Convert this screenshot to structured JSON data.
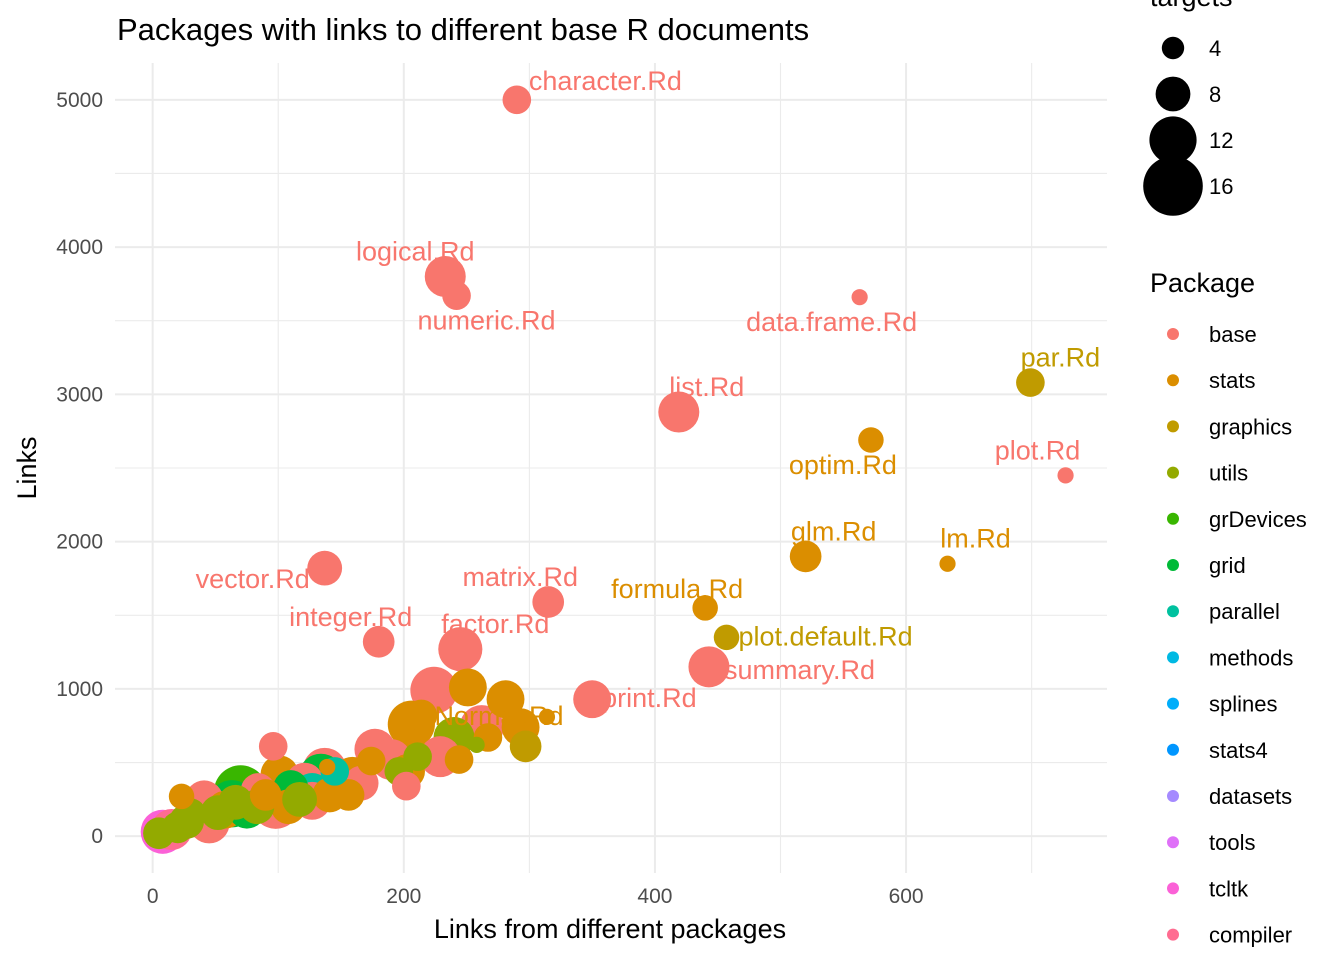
{
  "chart_data": {
    "type": "scatter",
    "title": "Packages with links to different base R documents",
    "xlabel": "Links from different packages",
    "ylabel": "Links",
    "xlim": [
      -30,
      760
    ],
    "ylim": [
      -250,
      5250
    ],
    "x_ticks": [
      0,
      200,
      400,
      600
    ],
    "y_ticks": [
      0,
      1000,
      2000,
      3000,
      4000,
      5000
    ],
    "grid": true,
    "size_legend": {
      "title": "targets",
      "items": [
        {
          "label": "4",
          "value": 4
        },
        {
          "label": "8",
          "value": 8
        },
        {
          "label": "12",
          "value": 12
        },
        {
          "label": "16",
          "value": 16
        }
      ]
    },
    "color_legend": {
      "title": "Package",
      "placement": "right",
      "items": [
        {
          "label": "base",
          "color": "#F8766D"
        },
        {
          "label": "stats",
          "color": "#DB8E00"
        },
        {
          "label": "graphics",
          "color": "#C09B00"
        },
        {
          "label": "utils",
          "color": "#93AA00"
        },
        {
          "label": "grDevices",
          "color": "#39B600"
        },
        {
          "label": "grid",
          "color": "#00BA38"
        },
        {
          "label": "parallel",
          "color": "#00C19F"
        },
        {
          "label": "methods",
          "color": "#00B9E3"
        },
        {
          "label": "splines",
          "color": "#00ADFA"
        },
        {
          "label": "stats4",
          "color": "#0096FF"
        },
        {
          "label": "datasets",
          "color": "#A58AFF"
        },
        {
          "label": "tools",
          "color": "#DF70F8"
        },
        {
          "label": "tcltk",
          "color": "#FB61D7"
        },
        {
          "label": "compiler",
          "color": "#FF6C91"
        }
      ]
    },
    "points": [
      {
        "x": 290,
        "y": 5000,
        "targets": 6,
        "package": "base",
        "label": "character.Rd"
      },
      {
        "x": 233,
        "y": 3800,
        "targets": 10,
        "package": "base",
        "label": "logical.Rd"
      },
      {
        "x": 242,
        "y": 3670,
        "targets": 6,
        "package": "base",
        "label": "numeric.Rd"
      },
      {
        "x": 563,
        "y": 3660,
        "targets": 2,
        "package": "base",
        "label": "data.frame.Rd"
      },
      {
        "x": 699,
        "y": 3080,
        "targets": 6,
        "package": "graphics",
        "label": "par.Rd"
      },
      {
        "x": 419,
        "y": 2880,
        "targets": 10,
        "package": "base",
        "label": "list.Rd"
      },
      {
        "x": 572,
        "y": 2690,
        "targets": 5,
        "package": "stats",
        "label": "optim.Rd"
      },
      {
        "x": 727,
        "y": 2450,
        "targets": 2,
        "package": "base",
        "label": "plot.Rd"
      },
      {
        "x": 520,
        "y": 1900,
        "targets": 7,
        "package": "stats",
        "label": "glm.Rd"
      },
      {
        "x": 633,
        "y": 1850,
        "targets": 2,
        "package": "stats",
        "label": "lm.Rd"
      },
      {
        "x": 137,
        "y": 1820,
        "targets": 8,
        "package": "base",
        "label": "vector.Rd"
      },
      {
        "x": 315,
        "y": 1590,
        "targets": 7,
        "package": "base",
        "label": "matrix.Rd"
      },
      {
        "x": 440,
        "y": 1550,
        "targets": 5,
        "package": "stats",
        "label": "formula.Rd"
      },
      {
        "x": 457,
        "y": 1350,
        "targets": 5,
        "package": "graphics",
        "label": "plot.default.Rd"
      },
      {
        "x": 180,
        "y": 1320,
        "targets": 7,
        "package": "base",
        "label": "integer.Rd"
      },
      {
        "x": 245,
        "y": 1270,
        "targets": 11,
        "package": "base",
        "label": "factor.Rd"
      },
      {
        "x": 443,
        "y": 1150,
        "targets": 10,
        "package": "base",
        "label": "summary.Rd"
      },
      {
        "x": 350,
        "y": 930,
        "targets": 9,
        "package": "base",
        "label": "print.Rd"
      },
      {
        "x": 314,
        "y": 810,
        "targets": 2,
        "package": "stats",
        "label": "Normal.Rd"
      },
      {
        "x": 224,
        "y": 990,
        "targets": 12,
        "package": "base"
      },
      {
        "x": 251,
        "y": 1010,
        "targets": 9,
        "package": "stats"
      },
      {
        "x": 281,
        "y": 930,
        "targets": 9,
        "package": "stats"
      },
      {
        "x": 206,
        "y": 760,
        "targets": 12,
        "package": "stats"
      },
      {
        "x": 214,
        "y": 820,
        "targets": 7,
        "package": "stats"
      },
      {
        "x": 262,
        "y": 740,
        "targets": 11,
        "package": "base"
      },
      {
        "x": 293,
        "y": 740,
        "targets": 9,
        "package": "stats"
      },
      {
        "x": 240,
        "y": 670,
        "targets": 10,
        "package": "utils"
      },
      {
        "x": 267,
        "y": 670,
        "targets": 6,
        "package": "stats"
      },
      {
        "x": 297,
        "y": 610,
        "targets": 7,
        "package": "graphics"
      },
      {
        "x": 258,
        "y": 620,
        "targets": 2,
        "package": "utils"
      },
      {
        "x": 177,
        "y": 590,
        "targets": 10,
        "package": "base"
      },
      {
        "x": 190,
        "y": 520,
        "targets": 10,
        "package": "base"
      },
      {
        "x": 229,
        "y": 540,
        "targets": 10,
        "package": "base"
      },
      {
        "x": 244,
        "y": 520,
        "targets": 6,
        "package": "stats"
      },
      {
        "x": 96,
        "y": 610,
        "targets": 6,
        "package": "base"
      },
      {
        "x": 211,
        "y": 540,
        "targets": 6,
        "package": "utils"
      },
      {
        "x": 174,
        "y": 510,
        "targets": 6,
        "package": "stats"
      },
      {
        "x": 137,
        "y": 450,
        "targets": 11,
        "package": "base"
      },
      {
        "x": 134,
        "y": 410,
        "targets": 11,
        "package": "grid"
      },
      {
        "x": 159,
        "y": 410,
        "targets": 9,
        "package": "stats"
      },
      {
        "x": 196,
        "y": 440,
        "targets": 6,
        "package": "utils"
      },
      {
        "x": 203,
        "y": 440,
        "targets": 8,
        "package": "stats"
      },
      {
        "x": 101,
        "y": 420,
        "targets": 9,
        "package": "stats"
      },
      {
        "x": 121,
        "y": 370,
        "targets": 9,
        "package": "base"
      },
      {
        "x": 166,
        "y": 360,
        "targets": 8,
        "package": "base"
      },
      {
        "x": 148,
        "y": 340,
        "targets": 10,
        "package": "stats"
      },
      {
        "x": 202,
        "y": 340,
        "targets": 6,
        "package": "base"
      },
      {
        "x": 110,
        "y": 330,
        "targets": 8,
        "package": "grid"
      },
      {
        "x": 84,
        "y": 310,
        "targets": 8,
        "package": "base"
      },
      {
        "x": 127,
        "y": 300,
        "targets": 9,
        "package": "parallel"
      },
      {
        "x": 70,
        "y": 300,
        "targets": 14,
        "package": "grDevices"
      },
      {
        "x": 141,
        "y": 280,
        "targets": 8,
        "package": "stats"
      },
      {
        "x": 113,
        "y": 290,
        "targets": 12,
        "package": "stats"
      },
      {
        "x": 156,
        "y": 280,
        "targets": 7,
        "package": "stats"
      },
      {
        "x": 23,
        "y": 270,
        "targets": 5,
        "package": "stats"
      },
      {
        "x": 41,
        "y": 250,
        "targets": 9,
        "package": "base"
      },
      {
        "x": 63,
        "y": 220,
        "targets": 12,
        "package": "grid"
      },
      {
        "x": 98,
        "y": 210,
        "targets": 12,
        "package": "base"
      },
      {
        "x": 108,
        "y": 200,
        "targets": 8,
        "package": "stats"
      },
      {
        "x": 127,
        "y": 240,
        "targets": 9,
        "package": "base"
      },
      {
        "x": 83,
        "y": 200,
        "targets": 8,
        "package": "utils"
      },
      {
        "x": 58,
        "y": 180,
        "targets": 9,
        "package": "stats"
      },
      {
        "x": 35,
        "y": 120,
        "targets": 9,
        "package": "base"
      },
      {
        "x": 45,
        "y": 90,
        "targets": 10,
        "package": "base"
      },
      {
        "x": 27,
        "y": 100,
        "targets": 8,
        "package": "utils"
      },
      {
        "x": 20,
        "y": 60,
        "targets": 7,
        "package": "utils"
      },
      {
        "x": 15,
        "y": 45,
        "targets": 10,
        "package": "compiler"
      },
      {
        "x": 8,
        "y": 30,
        "targets": 11,
        "package": "tcltk"
      },
      {
        "x": 5,
        "y": 20,
        "targets": 7,
        "package": "utils"
      },
      {
        "x": 30,
        "y": 150,
        "targets": 7,
        "package": "utils"
      },
      {
        "x": 52,
        "y": 160,
        "targets": 8,
        "package": "utils"
      },
      {
        "x": 66,
        "y": 230,
        "targets": 8,
        "package": "utils"
      },
      {
        "x": 75,
        "y": 180,
        "targets": 9,
        "package": "grid"
      },
      {
        "x": 90,
        "y": 280,
        "targets": 7,
        "package": "stats"
      },
      {
        "x": 117,
        "y": 250,
        "targets": 8,
        "package": "utils"
      },
      {
        "x": 145,
        "y": 440,
        "targets": 6,
        "package": "parallel"
      },
      {
        "x": 139,
        "y": 470,
        "targets": 2,
        "package": "stats"
      },
      {
        "x": 202,
        "y": 330,
        "targets": 5,
        "package": "base"
      }
    ]
  }
}
